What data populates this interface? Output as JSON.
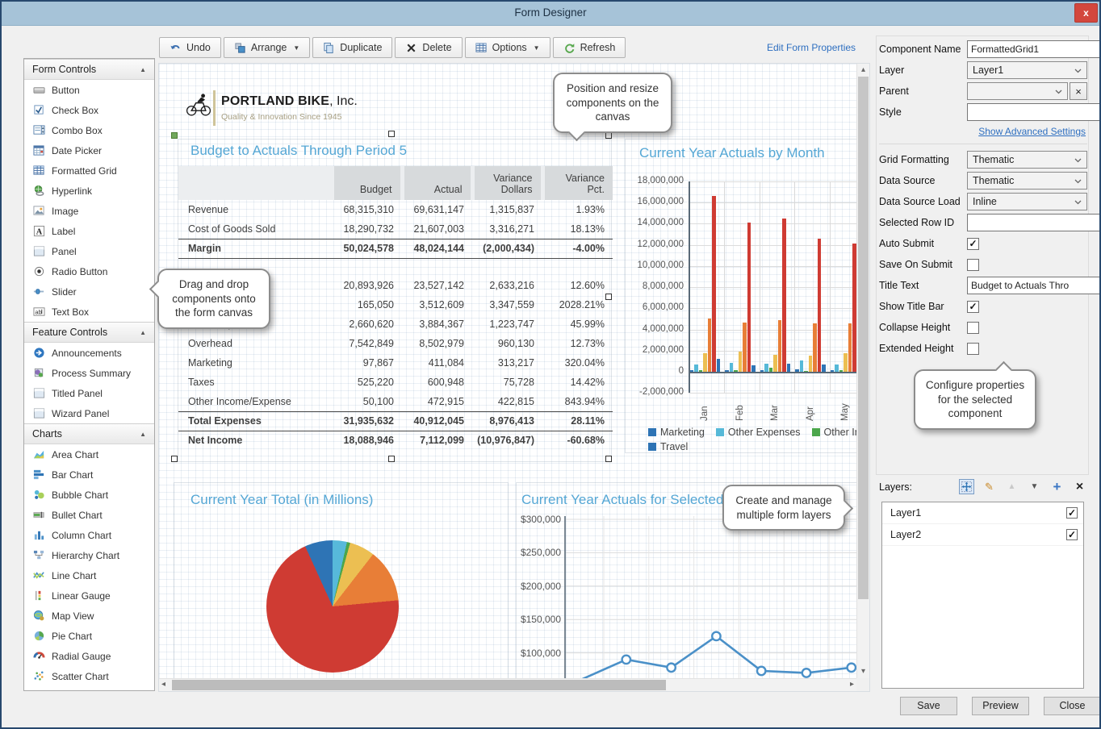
{
  "window": {
    "title": "Form Designer",
    "close": "x"
  },
  "toolbar": {
    "edit_form_properties": "Edit Form Properties",
    "buttons": [
      {
        "id": "undo",
        "label": "Undo",
        "icon": "undo-icon",
        "dropdown": false
      },
      {
        "id": "arrange",
        "label": "Arrange",
        "icon": "arrange-icon",
        "dropdown": true
      },
      {
        "id": "duplicate",
        "label": "Duplicate",
        "icon": "duplicate-icon",
        "dropdown": false
      },
      {
        "id": "delete",
        "label": "Delete",
        "icon": "delete-icon",
        "dropdown": false
      },
      {
        "id": "options",
        "label": "Options",
        "icon": "options-icon",
        "dropdown": true
      },
      {
        "id": "refresh",
        "label": "Refresh",
        "icon": "refresh-icon",
        "dropdown": false
      }
    ]
  },
  "sidebar": {
    "sections": [
      {
        "title": "Form Controls",
        "items": [
          {
            "icon": "button-icon",
            "label": "Button"
          },
          {
            "icon": "check-box-icon",
            "label": "Check Box"
          },
          {
            "icon": "combo-box-icon",
            "label": "Combo Box"
          },
          {
            "icon": "date-picker-icon",
            "label": "Date Picker"
          },
          {
            "icon": "formatted-grid-icon",
            "label": "Formatted Grid"
          },
          {
            "icon": "hyperlink-icon",
            "label": "Hyperlink"
          },
          {
            "icon": "image-icon",
            "label": "Image"
          },
          {
            "icon": "label-icon",
            "label": "Label"
          },
          {
            "icon": "panel-icon",
            "label": "Panel"
          },
          {
            "icon": "radio-button-icon",
            "label": "Radio Button"
          },
          {
            "icon": "slider-icon",
            "label": "Slider"
          },
          {
            "icon": "text-box-icon",
            "label": "Text Box"
          }
        ]
      },
      {
        "title": "Feature Controls",
        "items": [
          {
            "icon": "announcements-icon",
            "label": "Announcements"
          },
          {
            "icon": "process-summary-icon",
            "label": "Process Summary"
          },
          {
            "icon": "titled-panel-icon",
            "label": "Titled Panel"
          },
          {
            "icon": "wizard-panel-icon",
            "label": "Wizard Panel"
          }
        ]
      },
      {
        "title": "Charts",
        "items": [
          {
            "icon": "area-chart-icon",
            "label": "Area Chart"
          },
          {
            "icon": "bar-chart-icon",
            "label": "Bar Chart"
          },
          {
            "icon": "bubble-chart-icon",
            "label": "Bubble Chart"
          },
          {
            "icon": "bullet-chart-icon",
            "label": "Bullet Chart"
          },
          {
            "icon": "column-chart-icon",
            "label": "Column Chart"
          },
          {
            "icon": "hierarchy-chart-icon",
            "label": "Hierarchy Chart"
          },
          {
            "icon": "line-chart-icon",
            "label": "Line Chart"
          },
          {
            "icon": "linear-gauge-icon",
            "label": "Linear Gauge"
          },
          {
            "icon": "map-view-icon",
            "label": "Map View"
          },
          {
            "icon": "pie-chart-icon",
            "label": "Pie Chart"
          },
          {
            "icon": "radial-gauge-icon",
            "label": "Radial Gauge"
          },
          {
            "icon": "scatter-chart-icon",
            "label": "Scatter Chart"
          }
        ]
      }
    ]
  },
  "canvas": {
    "logo": {
      "name_bold": "PORTLAND BIKE",
      "name_rest": ", Inc.",
      "tagline": "Quality & Innovation Since 1945"
    },
    "grid": {
      "title": "Budget to Actuals Through Period 5",
      "columns": [
        "",
        "Budget",
        "Actual",
        "Variance\nDollars",
        "Variance\nPct."
      ],
      "rows": [
        {
          "label": "Revenue",
          "budget": "68,315,310",
          "actual": "69,631,147",
          "var_dollars": "1,315,837",
          "var_pct": "1.93%",
          "style": ""
        },
        {
          "label": "Cost of Goods Sold",
          "budget": "18,290,732",
          "actual": "21,607,003",
          "var_dollars": "3,316,271",
          "var_pct": "18.13%",
          "style": ""
        },
        {
          "label": "Margin",
          "budget": "50,024,578",
          "actual": "48,024,144",
          "var_dollars": "(2,000,434)",
          "var_pct": "-4.00%",
          "style": "bold line-top line-bottom"
        },
        {
          "label": "",
          "budget": "",
          "actual": "",
          "var_dollars": "",
          "var_pct": "",
          "style": "spacer"
        },
        {
          "label": "",
          "budget": "20,893,926",
          "actual": "23,527,142",
          "var_dollars": "2,633,216",
          "var_pct": "12.60%",
          "style": ""
        },
        {
          "label": "",
          "budget": "165,050",
          "actual": "3,512,609",
          "var_dollars": "3,347,559",
          "var_pct": "2028.21%",
          "style": ""
        },
        {
          "label": "Other Expenses",
          "budget": "2,660,620",
          "actual": "3,884,367",
          "var_dollars": "1,223,747",
          "var_pct": "45.99%",
          "style": ""
        },
        {
          "label": "Overhead",
          "budget": "7,542,849",
          "actual": "8,502,979",
          "var_dollars": "960,130",
          "var_pct": "12.73%",
          "style": ""
        },
        {
          "label": "Marketing",
          "budget": "97,867",
          "actual": "411,084",
          "var_dollars": "313,217",
          "var_pct": "320.04%",
          "style": ""
        },
        {
          "label": "Taxes",
          "budget": "525,220",
          "actual": "600,948",
          "var_dollars": "75,728",
          "var_pct": "14.42%",
          "style": ""
        },
        {
          "label": "Other Income/Expense",
          "budget": "50,100",
          "actual": "472,915",
          "var_dollars": "422,815",
          "var_pct": "843.94%",
          "style": ""
        },
        {
          "label": "Total Expenses",
          "budget": "31,935,632",
          "actual": "40,912,045",
          "var_dollars": "8,976,413",
          "var_pct": "28.11%",
          "style": "bold line-top"
        },
        {
          "label": "Net Income",
          "budget": "18,088,946",
          "actual": "7,112,099",
          "var_dollars": "(10,976,847)",
          "var_pct": "-60.68%",
          "style": "bold line-top"
        }
      ]
    }
  },
  "chart_data": [
    {
      "type": "bar",
      "title": "Current Year Actuals by Month",
      "categories": [
        "Jan",
        "Feb",
        "Mar",
        "Apr",
        "May"
      ],
      "ylim": [
        -2000000,
        18000000
      ],
      "ytick_step": 2000000,
      "y_ticks": [
        "18,000,000",
        "16,000,000",
        "14,000,000",
        "12,000,000",
        "10,000,000",
        "8,000,000",
        "6,000,000",
        "4,000,000",
        "2,000,000",
        "0",
        "-2,000,000"
      ],
      "grid": true,
      "legend_position": "bottom",
      "series": [
        {
          "name": "Marketing",
          "color": "#2e74b5",
          "values": [
            150000,
            150000,
            150000,
            200000,
            150000
          ]
        },
        {
          "name": "Other Expenses",
          "color": "#56b9d8",
          "values": [
            650000,
            850000,
            750000,
            1100000,
            700000
          ]
        },
        {
          "name": "Other Income/Expense",
          "color": "#4ba64b",
          "values": [
            150000,
            150000,
            350000,
            100000,
            150000
          ]
        },
        {
          "name": "",
          "color": "#ecbf52",
          "values": [
            1750000,
            1900000,
            1600000,
            1500000,
            1750000
          ]
        },
        {
          "name": "",
          "color": "#e87e37",
          "values": [
            5000000,
            4650000,
            4850000,
            4600000,
            4600000
          ]
        },
        {
          "name": "",
          "color": "#cf3b33",
          "values": [
            16600000,
            14100000,
            14500000,
            12550000,
            12100000
          ]
        },
        {
          "name": "Travel",
          "color": "#2e74b5",
          "values": [
            1200000,
            620000,
            800000,
            700000,
            300000
          ]
        }
      ],
      "legend_rows": [
        [
          {
            "label": "Marketing",
            "color": "#2e74b5"
          },
          {
            "label": "Other Expenses",
            "color": "#56b9d8"
          },
          {
            "label": "Other Income/Expense",
            "color": "#4ba64b"
          }
        ],
        [
          {
            "label": "Travel",
            "color": "#2e74b5"
          }
        ]
      ]
    },
    {
      "type": "pie",
      "title": "Current Year Total (in Millions)",
      "slices": [
        {
          "label": "",
          "color": "#57b9da",
          "pct": 3.5
        },
        {
          "label": "",
          "color": "#4ba64b",
          "pct": 0.8
        },
        {
          "label": "",
          "color": "#ecbf52",
          "pct": 6.2
        },
        {
          "label": "",
          "color": "#e87e37",
          "pct": 13.0
        },
        {
          "label": "",
          "color": "#cf3b33",
          "pct": 69.7
        },
        {
          "label": "",
          "color": "#2e74b5",
          "pct": 6.8
        }
      ]
    },
    {
      "type": "line",
      "title": "Current Year Actuals for Selected",
      "y_ticks": [
        "$300,000",
        "$250,000",
        "$200,000",
        "$150,000",
        "$100,000"
      ],
      "ylim": [
        50000,
        300000
      ],
      "values": [
        60000,
        90000,
        78000,
        125000,
        73000,
        70000,
        78000
      ],
      "color": "#4a90c8"
    }
  ],
  "callouts": {
    "position": "Position and resize components on the canvas",
    "drag": "Drag and drop components onto the form canvas",
    "configure": "Configure properties for the selected component",
    "layers": "Create and manage multiple form layers"
  },
  "properties": {
    "fields": {
      "component_name": {
        "label": "Component Name",
        "value": "FormattedGrid1"
      },
      "layer": {
        "label": "Layer",
        "value": "Layer1"
      },
      "parent": {
        "label": "Parent",
        "value": ""
      },
      "style": {
        "label": "Style",
        "value": ""
      },
      "advanced_link": "Show Advanced Settings",
      "grid_formatting": {
        "label": "Grid Formatting",
        "value": "Thematic"
      },
      "data_source": {
        "label": "Data Source",
        "value": "Thematic"
      },
      "data_source_load": {
        "label": "Data Source Load",
        "value": "Inline"
      },
      "selected_row_id": {
        "label": "Selected Row ID",
        "value": ""
      },
      "auto_submit": {
        "label": "Auto Submit",
        "checked": true
      },
      "save_on_submit": {
        "label": "Save On Submit",
        "checked": false
      },
      "title_text": {
        "label": "Title Text",
        "value": "Budget to Actuals Thro"
      },
      "show_title_bar": {
        "label": "Show Title Bar",
        "checked": true
      },
      "collapse_height": {
        "label": "Collapse Height",
        "checked": false
      },
      "extended_height": {
        "label": "Extended Height",
        "checked": false
      }
    }
  },
  "layers_panel": {
    "label": "Layers:",
    "tools": [
      {
        "icon": "layer-move-icon"
      },
      {
        "icon": "layer-edit-icon"
      },
      {
        "icon": "layer-up-icon"
      },
      {
        "icon": "layer-down-icon"
      },
      {
        "icon": "layer-add-icon"
      },
      {
        "icon": "layer-delete-icon"
      }
    ],
    "items": [
      {
        "name": "Layer1",
        "checked": true
      },
      {
        "name": "Layer2",
        "checked": true
      }
    ]
  },
  "footer": {
    "save": "Save",
    "preview": "Preview",
    "close": "Close"
  }
}
